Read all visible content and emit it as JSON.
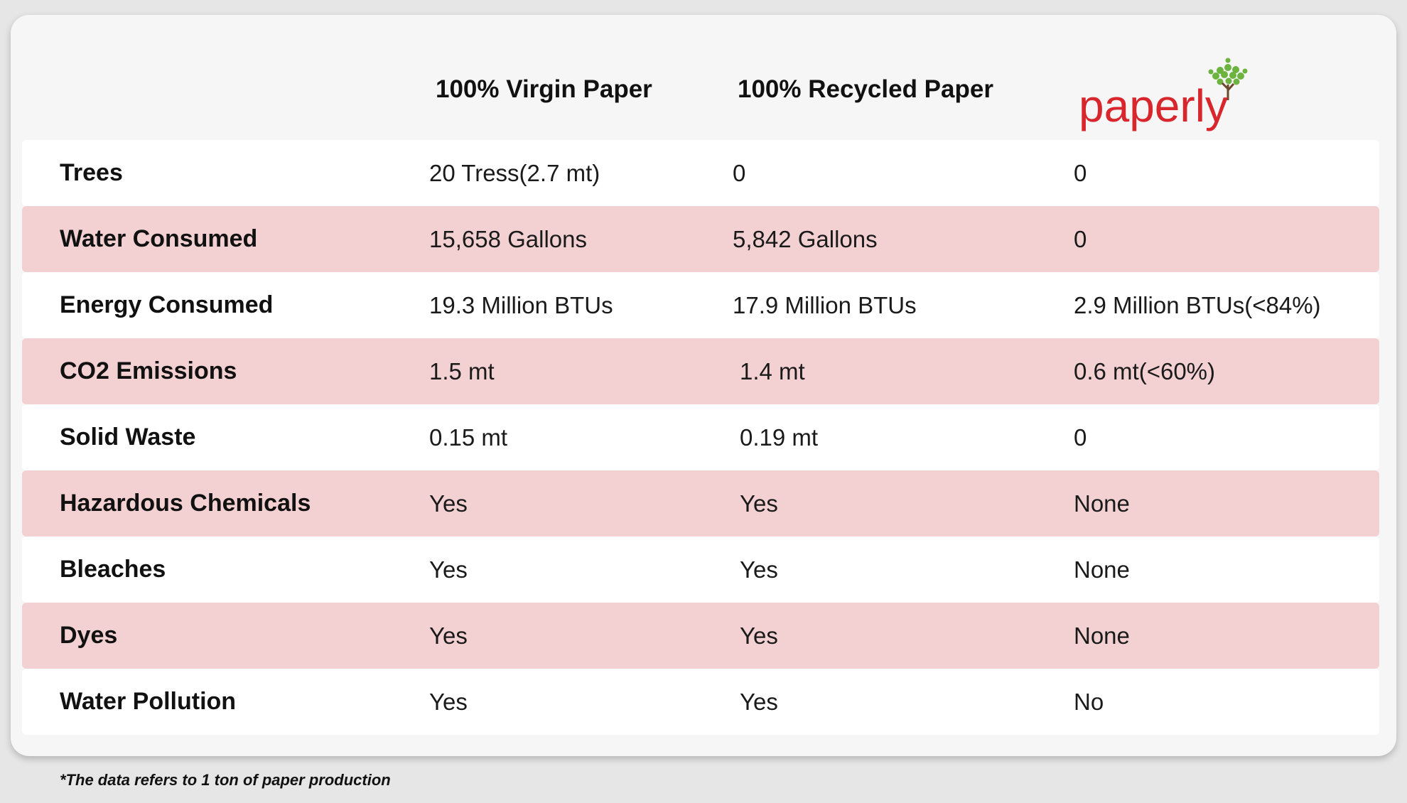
{
  "header": {
    "col1": "100% Virgin Paper",
    "col2": "100% Recycled Paper",
    "logo_text": "paperly",
    "logo_color": "#d8262d",
    "logo_leaf_color": "#6db33f"
  },
  "rows": [
    {
      "label": "Trees",
      "virgin": "20 Tress(2.7 mt)",
      "recycled": "0",
      "paperly": "0"
    },
    {
      "label": "Water Consumed",
      "virgin": "15,658 Gallons",
      "recycled": "5,842 Gallons",
      "paperly": "0"
    },
    {
      "label": "Energy Consumed",
      "virgin": "19.3 Million BTUs",
      "recycled": "17.9 Million BTUs",
      "paperly": "2.9 Million BTUs(<84%)"
    },
    {
      "label": "CO2 Emissions",
      "virgin": "1.5 mt",
      "recycled": "1.4 mt",
      "paperly": "0.6 mt(<60%)"
    },
    {
      "label": "Solid Waste",
      "virgin": "0.15 mt",
      "recycled": "0.19 mt",
      "paperly": "0"
    },
    {
      "label": "Hazardous Chemicals",
      "virgin": "Yes",
      "recycled": "Yes",
      "paperly": "None"
    },
    {
      "label": "Bleaches",
      "virgin": "Yes",
      "recycled": "Yes",
      "paperly": "None"
    },
    {
      "label": "Dyes",
      "virgin": "Yes",
      "recycled": "Yes",
      "paperly": "None"
    },
    {
      "label": "Water Pollution",
      "virgin": "Yes",
      "recycled": "Yes",
      "paperly": "No"
    }
  ],
  "colors": {
    "row_alt": "#f3d1d3",
    "row": "#ffffff",
    "card": "#f6f6f6",
    "background": "#e6e6e6"
  },
  "footnote": "*The data refers to 1 ton of paper production"
}
